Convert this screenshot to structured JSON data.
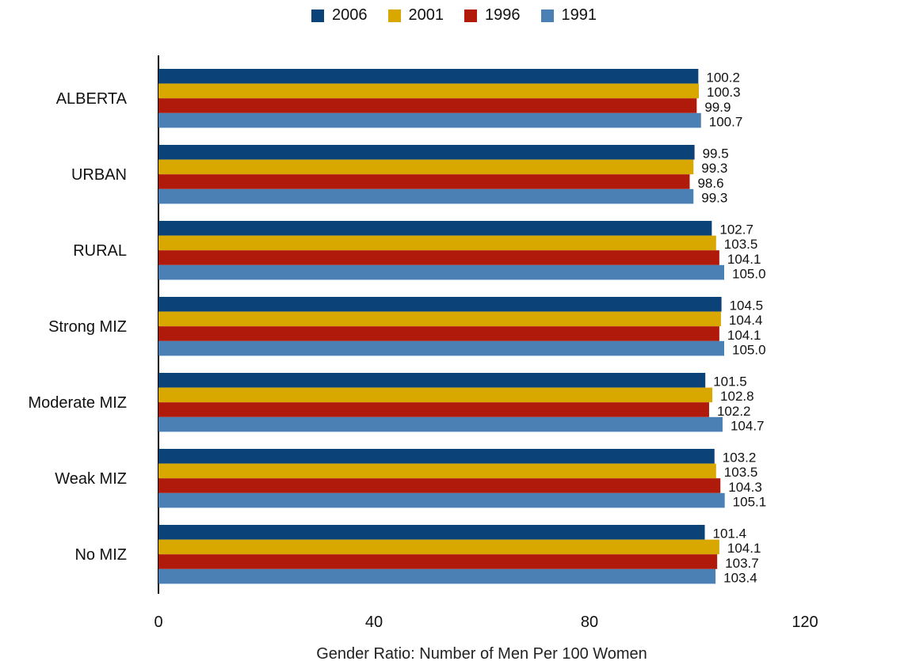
{
  "chart_data": {
    "type": "bar",
    "orientation": "horizontal",
    "categories": [
      "ALBERTA",
      "URBAN",
      "RURAL",
      "Strong MIZ",
      "Moderate MIZ",
      "Weak MIZ",
      "No MIZ"
    ],
    "series": [
      {
        "name": "2006",
        "color": "#0b4278",
        "values": [
          100.2,
          99.5,
          102.7,
          104.5,
          101.5,
          103.2,
          101.4
        ]
      },
      {
        "name": "2001",
        "color": "#d9a800",
        "values": [
          100.3,
          99.3,
          103.5,
          104.4,
          102.8,
          103.5,
          104.1
        ]
      },
      {
        "name": "1996",
        "color": "#b01a0a",
        "values": [
          99.9,
          98.6,
          104.1,
          104.1,
          102.2,
          104.3,
          103.7
        ]
      },
      {
        "name": "1991",
        "color": "#4a80b4",
        "values": [
          100.7,
          99.3,
          105.0,
          105.0,
          104.7,
          105.1,
          103.4
        ]
      }
    ],
    "value_labels": [
      [
        "100.2",
        "99.5",
        "102.7",
        "104.5",
        "101.5",
        "103.2",
        "101.4"
      ],
      [
        "100.3",
        "99.3",
        "103.5",
        "104.4",
        "102.8",
        "103.5",
        "104.1"
      ],
      [
        "99.9",
        "98.6",
        "104.1",
        "104.1",
        "102.2",
        "104.3",
        "103.7"
      ],
      [
        "100.7",
        "99.3",
        "105.0",
        "105.0",
        "104.7",
        "105.1",
        "103.4"
      ]
    ],
    "xlabel": "Gender Ratio:  Number of Men Per 100 Women",
    "xlim": [
      0,
      120
    ],
    "xticks": [
      0,
      40,
      80,
      120
    ],
    "xtick_labels": [
      "0",
      "40",
      "80",
      "120"
    ],
    "legend_position": "top-center",
    "grid": false
  }
}
